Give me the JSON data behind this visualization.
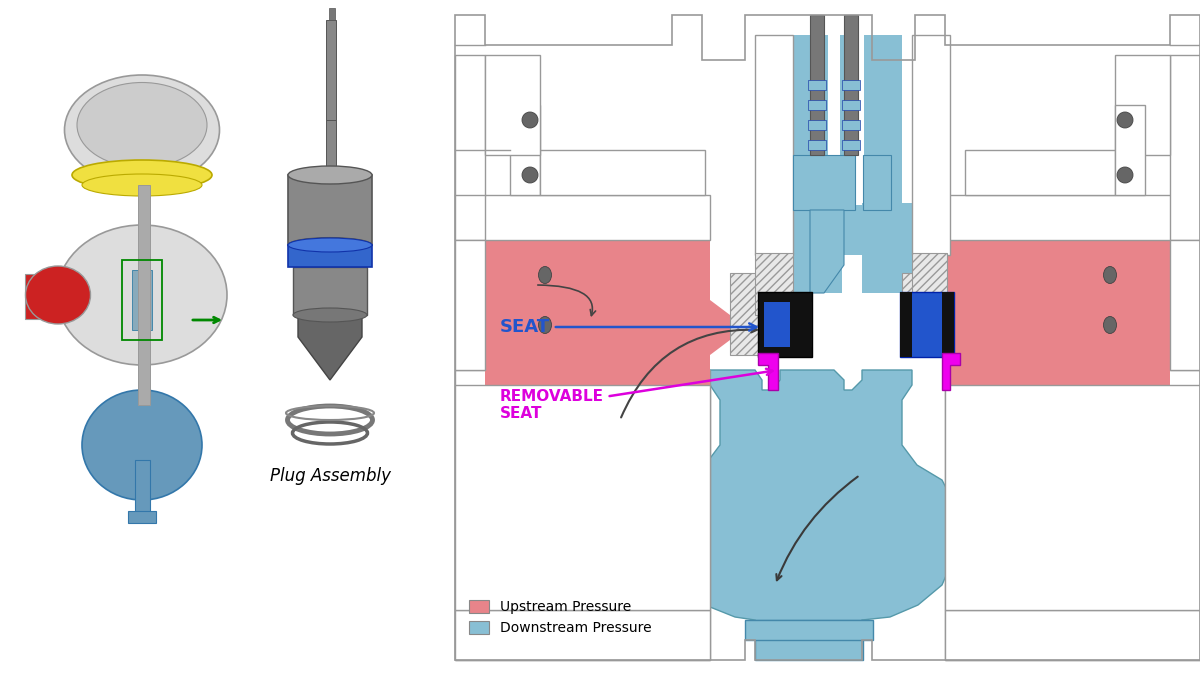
{
  "plug_assembly_label": "Plug Assembly",
  "seat_label": "SEAT",
  "removable_seat_label": "REMOVABLE\nSEAT",
  "legend_upstream": "Upstream Pressure",
  "legend_downstream": "Downstream Pressure",
  "color_upstream": "#e8848a",
  "color_downstream": "#88bfd4",
  "color_seat_black": "#111111",
  "color_seat_blue": "#2255cc",
  "color_removable": "#ee00ee",
  "color_outline": "#999999",
  "color_white": "#ffffff",
  "color_hatch_bg": "#e8e8e8",
  "color_blue_annot": "#2255cc",
  "color_magenta_annot": "#dd00dd",
  "color_stem_dark": "#777777",
  "color_stem_light": "#aaaaaa",
  "color_yellow": "#f0e040",
  "color_green": "#008800",
  "background": "#ffffff"
}
